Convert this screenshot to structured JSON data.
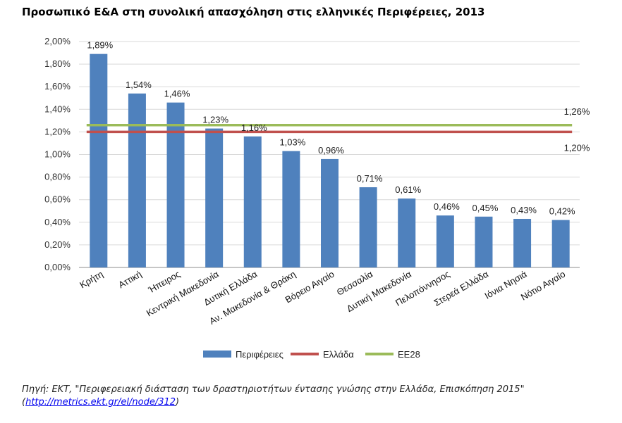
{
  "title": "Προσωπικό Ε&Α στη συνολική απασχόληση στις ελληνικές Περιφέρειες, 2013",
  "source": {
    "text": "Πηγή: ΕΚΤ, \"Περιφερειακή διάσταση των δραστηριοτήτων έντασης γνώσης στην Ελλάδα, Επισκόπηση 2015\"",
    "link_open": "(",
    "link": "http://metrics.ekt.gr/el/node/312",
    "link_close": ")"
  },
  "chart_data": {
    "type": "bar",
    "title": "Προσωπικό Ε&Α στη συνολική απασχόληση στις ελληνικές Περιφέρειες, 2013",
    "xlabel": "",
    "ylabel": "",
    "ylim": [
      0,
      2.0
    ],
    "yticks": [
      0,
      0.2,
      0.4,
      0.6,
      0.8,
      1.0,
      1.2,
      1.4,
      1.6,
      1.8,
      2.0
    ],
    "ytick_labels": [
      "0,00%",
      "0,20%",
      "0,40%",
      "0,60%",
      "0,80%",
      "1,00%",
      "1,20%",
      "1,40%",
      "1,60%",
      "1,80%",
      "2,00%"
    ],
    "grid": true,
    "legend_position": "bottom",
    "categories": [
      "Κρήτη",
      "Αττική",
      "Ήπειρος",
      "Κεντρική Μακεδονία",
      "Δυτική Ελλάδα",
      "Αν. Μακεδονία & Θράκη",
      "Βόρειο Αιγαίο",
      "Θεσσαλία",
      "Δυτική Μακεδονία",
      "Πελοπόννησος",
      "Στερεά Ελλάδα",
      "Ιόνια Νησιά",
      "Νότιο Αιγαίο"
    ],
    "series": [
      {
        "name": "Περιφέρειες",
        "type": "bar",
        "color": "#4f81bd",
        "values": [
          1.89,
          1.54,
          1.46,
          1.23,
          1.16,
          1.03,
          0.96,
          0.71,
          0.61,
          0.46,
          0.45,
          0.43,
          0.42
        ],
        "labels": [
          "1,89%",
          "1,54%",
          "1,46%",
          "1,23%",
          "1,16%",
          "1,03%",
          "0,96%",
          "0,71%",
          "0,61%",
          "0,46%",
          "0,45%",
          "0,43%",
          "0,42%"
        ]
      },
      {
        "name": "Ελλάδα",
        "type": "line",
        "color": "#c0504d",
        "value": 1.2,
        "label": "1,20%"
      },
      {
        "name": "ΕΕ28",
        "type": "line",
        "color": "#9bbb59",
        "value": 1.26,
        "label": "1,26%"
      }
    ]
  }
}
